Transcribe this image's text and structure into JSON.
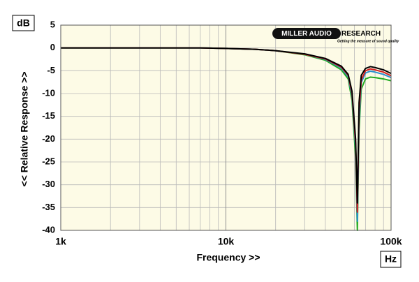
{
  "chart_data": {
    "type": "line",
    "x_label": "Frequency >>",
    "y_label": "<< Relative Response >>",
    "y_unit": "dB",
    "x_unit": "Hz",
    "logo_left": "MILLER AUDIO",
    "logo_right": "RESEARCH",
    "logo_tagline": "Getting the measure of sound quality",
    "x_scale": "log",
    "grid": true,
    "xlim": [
      1000,
      100000
    ],
    "xticks": [
      {
        "value": 1000,
        "label": "1k"
      },
      {
        "value": 10000,
        "label": "10k"
      },
      {
        "value": 100000,
        "label": "100k"
      }
    ],
    "xminorticks": [
      2000,
      3000,
      4000,
      5000,
      6000,
      7000,
      8000,
      9000,
      20000,
      30000,
      40000,
      50000,
      60000,
      70000,
      80000,
      90000
    ],
    "ylim": [
      -40,
      5
    ],
    "yticks": [
      5,
      0,
      -5,
      -10,
      -15,
      -20,
      -25,
      -30,
      -35,
      -40
    ],
    "x": [
      1000,
      2000,
      5000,
      7000,
      10000,
      15000,
      20000,
      30000,
      40000,
      50000,
      55000,
      58000,
      61000,
      62500,
      64000,
      66000,
      70000,
      75000,
      80000,
      90000,
      100000
    ],
    "series": [
      {
        "color": "#22aa22",
        "values": [
          0,
          0,
          0,
          0,
          -0.1,
          -0.3,
          -0.6,
          -1.5,
          -2.7,
          -4.8,
          -6.8,
          -11.5,
          -24,
          -40,
          -18,
          -9,
          -6.8,
          -6.4,
          -6.5,
          -6.8,
          -7.2
        ]
      },
      {
        "color": "#2a8fd0",
        "values": [
          0,
          0,
          0,
          0,
          -0.1,
          -0.3,
          -0.6,
          -1.4,
          -2.5,
          -4.4,
          -6.3,
          -10.5,
          -22,
          -38,
          -16,
          -7.6,
          -5.5,
          -5.1,
          -5.3,
          -5.8,
          -6.5
        ]
      },
      {
        "color": "#d42020",
        "values": [
          0,
          0,
          0,
          0,
          -0.1,
          -0.3,
          -0.6,
          -1.4,
          -2.4,
          -4.2,
          -6,
          -10,
          -21,
          -36,
          -14,
          -7,
          -5,
          -4.6,
          -4.8,
          -5.3,
          -6.1
        ]
      },
      {
        "color": "#000000",
        "values": [
          0,
          0,
          0,
          0,
          -0.1,
          -0.3,
          -0.6,
          -1.3,
          -2.3,
          -4,
          -5.8,
          -9.5,
          -20,
          -34,
          -12,
          -6,
          -4.5,
          -4.1,
          -4.3,
          -4.8,
          -5.6
        ]
      }
    ]
  }
}
